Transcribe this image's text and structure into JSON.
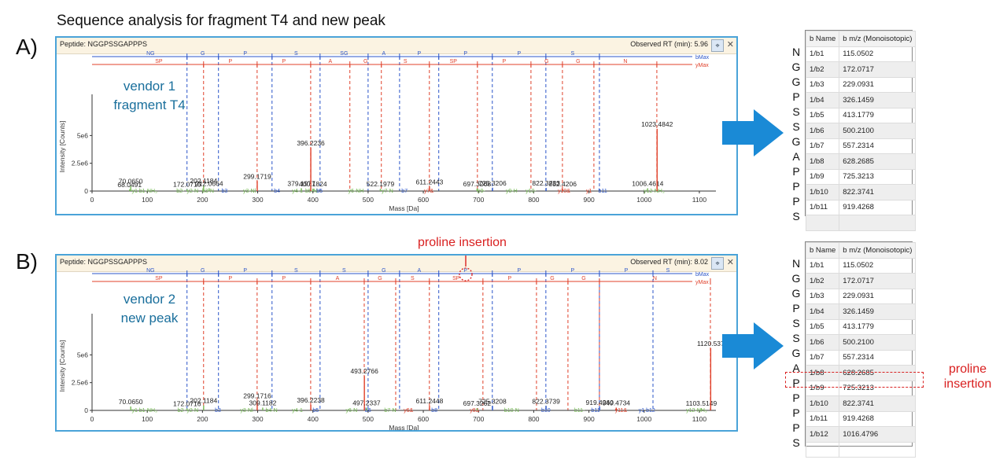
{
  "figure_title": "Sequence analysis for fragment T4 and new peak",
  "arrow_color": "#1a8ad6",
  "icons": {
    "pin": "pin-icon",
    "close": "close-icon",
    "arrow": "right-arrow-icon"
  },
  "panels": [
    {
      "letter": "A)",
      "peptide_label": "Peptide: NGGPSSGAPPPS",
      "rt_label": "Observed RT (min): 5.96",
      "vendor_line1": "vendor 1",
      "vendor_line2": "fragment T4",
      "x_axis_label": "Mass [Da]",
      "y_axis_label": "Intensity [Counts]",
      "b_max_label": "bMax",
      "y_max_label": "yMax",
      "b_seq": [
        "NG",
        "G",
        "P",
        "S",
        "SG",
        "A",
        "P",
        "P",
        "P",
        "S"
      ],
      "y_seq": [
        "SP",
        "P",
        "P",
        "A",
        "G",
        "S",
        "SP",
        "P",
        "G",
        "G",
        "N"
      ],
      "table_headers": [
        "b Name",
        "b m/z (Monoisotopic)"
      ],
      "rows": [
        {
          "aa": "N",
          "name": "1/b1",
          "mz": "115.0502"
        },
        {
          "aa": "G",
          "name": "1/b2",
          "mz": "172.0717"
        },
        {
          "aa": "G",
          "name": "1/b3",
          "mz": "229.0931"
        },
        {
          "aa": "P",
          "name": "1/b4",
          "mz": "326.1459"
        },
        {
          "aa": "S",
          "name": "1/b5",
          "mz": "413.1779"
        },
        {
          "aa": "S",
          "name": "1/b6",
          "mz": "500.2100"
        },
        {
          "aa": "G",
          "name": "1/b7",
          "mz": "557.2314"
        },
        {
          "aa": "A",
          "name": "1/b8",
          "mz": "628.2685"
        },
        {
          "aa": "P",
          "name": "1/b9",
          "mz": "725.3213"
        },
        {
          "aa": "P",
          "name": "1/b10",
          "mz": "822.3741"
        },
        {
          "aa": "P",
          "name": "1/b11",
          "mz": "919.4268"
        },
        {
          "aa": "S",
          "name": "",
          "mz": ""
        }
      ]
    },
    {
      "letter": "B)",
      "peptide_label": "Peptide: NGGPSSGAPPPS",
      "rt_label": "Observed RT (min): 8.02",
      "vendor_line1": "vendor 2",
      "vendor_line2": "new peak",
      "x_axis_label": "Mass [Da]",
      "y_axis_label": "Intensity [Counts]",
      "b_max_label": "bMax",
      "y_max_label": "yMax",
      "insertion_label": "proline insertion",
      "insertion_note_line1": "proline",
      "insertion_note_line2": "insertion",
      "b_seq": [
        "NG",
        "G",
        "P",
        "S",
        "S",
        "G",
        "A",
        "P",
        "P",
        "P",
        "P",
        "S"
      ],
      "y_seq": [
        "SP",
        "P",
        "P",
        "A",
        "G",
        "S",
        "SP",
        "P",
        "G",
        "G",
        "N"
      ],
      "table_headers": [
        "b Name",
        "b m/z (Monoisotopic)"
      ],
      "rows": [
        {
          "aa": "N",
          "name": "1/b1",
          "mz": "115.0502"
        },
        {
          "aa": "G",
          "name": "1/b2",
          "mz": "172.0717"
        },
        {
          "aa": "G",
          "name": "1/b3",
          "mz": "229.0931"
        },
        {
          "aa": "P",
          "name": "1/b4",
          "mz": "326.1459"
        },
        {
          "aa": "S",
          "name": "1/b5",
          "mz": "413.1779"
        },
        {
          "aa": "S",
          "name": "1/b6",
          "mz": "500.2100"
        },
        {
          "aa": "G",
          "name": "1/b7",
          "mz": "557.2314"
        },
        {
          "aa": "A",
          "name": "1/b8",
          "mz": "628.2685"
        },
        {
          "aa": "P",
          "name": "1/b9",
          "mz": "725.3213"
        },
        {
          "aa": "P",
          "name": "1/b10",
          "mz": "822.3741"
        },
        {
          "aa": "P",
          "name": "1/b11",
          "mz": "919.4268"
        },
        {
          "aa": "P",
          "name": "1/b12",
          "mz": "1016.4796"
        },
        {
          "aa": "S",
          "name": "",
          "mz": ""
        }
      ]
    }
  ],
  "chart_data": [
    {
      "type": "bar",
      "xlabel": "Mass [Da]",
      "ylabel": "Intensity [Counts]",
      "xlim": [
        0,
        1130
      ],
      "ylim": [
        0,
        8000000
      ],
      "xticks": [
        0,
        100,
        200,
        300,
        400,
        500,
        600,
        700,
        800,
        900,
        1000,
        1100
      ],
      "yticks": [
        {
          "v": 0,
          "l": "0"
        },
        {
          "v": 2500000,
          "l": "2.5e6"
        },
        {
          "v": 5000000,
          "l": "5e6"
        }
      ],
      "colors": {
        "b": "#2b55c9",
        "y": "#e0402a",
        "other": "#76bb55",
        "unmatched": "#444444"
      },
      "peaks": [
        {
          "x": 68.0491,
          "y": 150000,
          "label": "68.0491",
          "c": "other"
        },
        {
          "x": 70.065,
          "y": 450000,
          "label": "70.0650",
          "c": "other"
        },
        {
          "x": 172.0716,
          "y": 180000,
          "label": "172.0716",
          "c": "other"
        },
        {
          "x": 202.1184,
          "y": 500000,
          "label": "202.1184",
          "c": "other"
        },
        {
          "x": 212.0664,
          "y": 250000,
          "label": "212.0664",
          "c": "other"
        },
        {
          "x": 299.1719,
          "y": 900000,
          "label": "299.1719",
          "c": "y"
        },
        {
          "x": 379.1977,
          "y": 250000,
          "label": "379.1977",
          "c": "other"
        },
        {
          "x": 396.2236,
          "y": 3900000,
          "label": "396.2236",
          "c": "y"
        },
        {
          "x": 400.1824,
          "y": 220000,
          "label": "400.1824",
          "c": "other"
        },
        {
          "x": 522.1979,
          "y": 200000,
          "label": "522.1979",
          "c": "other"
        },
        {
          "x": 611.2443,
          "y": 400000,
          "label": "611.2443",
          "c": "y"
        },
        {
          "x": 697.3268,
          "y": 220000,
          "label": "697.3268",
          "c": "other"
        },
        {
          "x": 725.3206,
          "y": 300000,
          "label": "725.3206",
          "c": "b"
        },
        {
          "x": 822.3733,
          "y": 280000,
          "label": "822.3733",
          "c": "b"
        },
        {
          "x": 852.4206,
          "y": 200000,
          "label": "852.4206",
          "c": "y"
        },
        {
          "x": 1006.4614,
          "y": 250000,
          "label": "1006.4614",
          "c": "other"
        },
        {
          "x": 1023.4842,
          "y": 5600000,
          "label": "1023.4842",
          "c": "y"
        }
      ],
      "ion_labels": [
        {
          "x": 95,
          "text": "y1 b1-NH₃",
          "c": "other"
        },
        {
          "x": 160,
          "text": "b2-",
          "c": "other"
        },
        {
          "x": 182,
          "text": "y2-N",
          "c": "other"
        },
        {
          "x": 210,
          "text": "b3-N",
          "c": "other"
        },
        {
          "x": 240,
          "text": "b3",
          "c": "b"
        },
        {
          "x": 285,
          "text": "y3-Nl",
          "c": "other"
        },
        {
          "x": 335,
          "text": "b4",
          "c": "b"
        },
        {
          "x": 372,
          "text": "y4-1",
          "c": "other"
        },
        {
          "x": 397,
          "text": "b5-N",
          "c": "other"
        },
        {
          "x": 412,
          "text": "b5",
          "c": "b"
        },
        {
          "x": 478,
          "text": "y6-NH",
          "c": "other"
        },
        {
          "x": 535,
          "text": "y7-N",
          "c": "other"
        },
        {
          "x": 566,
          "text": "b7",
          "c": "b"
        },
        {
          "x": 610,
          "text": "y7&",
          "c": "y"
        },
        {
          "x": 705,
          "text": "b9-",
          "c": "other"
        },
        {
          "x": 760,
          "text": "y9-H",
          "c": "other"
        },
        {
          "x": 795,
          "text": "y10-",
          "c": "other"
        },
        {
          "x": 855,
          "text": "y10&",
          "c": "y"
        },
        {
          "x": 900,
          "text": "y1",
          "c": "y"
        },
        {
          "x": 925,
          "text": "b11",
          "c": "b"
        },
        {
          "x": 1018,
          "text": "y12-NH₃",
          "c": "other"
        }
      ]
    },
    {
      "type": "bar",
      "xlabel": "Mass [Da]",
      "ylabel": "Intensity [Counts]",
      "xlim": [
        0,
        1130
      ],
      "ylim": [
        0,
        8000000
      ],
      "xticks": [
        0,
        100,
        200,
        300,
        400,
        500,
        600,
        700,
        800,
        900,
        1000,
        1100
      ],
      "yticks": [
        {
          "v": 0,
          "l": "0"
        },
        {
          "v": 2500000,
          "l": "2.5e6"
        },
        {
          "v": 5000000,
          "l": "5e6"
        }
      ],
      "colors": {
        "b": "#2b55c9",
        "y": "#e0402a",
        "other": "#76bb55",
        "unmatched": "#444444"
      },
      "peaks": [
        {
          "x": 70.065,
          "y": 350000,
          "label": "70.0650",
          "c": "other"
        },
        {
          "x": 172.0716,
          "y": 180000,
          "label": "172.0716",
          "c": "other"
        },
        {
          "x": 202.1184,
          "y": 450000,
          "label": "202.1184",
          "c": "other"
        },
        {
          "x": 299.1716,
          "y": 900000,
          "label": "299.1716",
          "c": "y"
        },
        {
          "x": 309.1182,
          "y": 250000,
          "label": "309.1182",
          "c": "other"
        },
        {
          "x": 396.2238,
          "y": 500000,
          "label": "396.2238",
          "c": "y"
        },
        {
          "x": 493.2766,
          "y": 3100000,
          "label": "493.2766",
          "c": "y"
        },
        {
          "x": 497.2337,
          "y": 250000,
          "label": "497.2337",
          "c": "other"
        },
        {
          "x": 611.2448,
          "y": 420000,
          "label": "611.2448",
          "c": "y"
        },
        {
          "x": 697.3262,
          "y": 200000,
          "label": "697.3262",
          "c": "other"
        },
        {
          "x": 725.3208,
          "y": 400000,
          "label": "725.3208",
          "c": "b"
        },
        {
          "x": 822.3739,
          "y": 400000,
          "label": "822.3739",
          "c": "b"
        },
        {
          "x": 919.426,
          "y": 300000,
          "label": "919.4260",
          "c": "b"
        },
        {
          "x": 949.4734,
          "y": 250000,
          "label": "949.4734",
          "c": "y"
        },
        {
          "x": 1103.5149,
          "y": 200000,
          "label": "1103.5149",
          "c": "other"
        },
        {
          "x": 1120.537,
          "y": 5600000,
          "label": "1120.537",
          "c": "y"
        }
      ],
      "ion_labels": [
        {
          "x": 95,
          "text": "y1 b1-NH₃",
          "c": "other"
        },
        {
          "x": 162,
          "text": "b2-",
          "c": "other"
        },
        {
          "x": 182,
          "text": "y2-N",
          "c": "other"
        },
        {
          "x": 228,
          "text": "b3",
          "c": "b"
        },
        {
          "x": 280,
          "text": "y3-Nl",
          "c": "other"
        },
        {
          "x": 325,
          "text": "b4-N",
          "c": "other"
        },
        {
          "x": 372,
          "text": "y4-1",
          "c": "other"
        },
        {
          "x": 405,
          "text": "b5",
          "c": "b"
        },
        {
          "x": 470,
          "text": "y6-N",
          "c": "other"
        },
        {
          "x": 500,
          "text": "b6",
          "c": "b"
        },
        {
          "x": 540,
          "text": "b7-N",
          "c": "other"
        },
        {
          "x": 573,
          "text": "y6&",
          "c": "y"
        },
        {
          "x": 620,
          "text": "b8",
          "c": "b"
        },
        {
          "x": 693,
          "text": "y8&",
          "c": "y"
        },
        {
          "x": 760,
          "text": "b10-N",
          "c": "other"
        },
        {
          "x": 822,
          "text": "b10",
          "c": "b"
        },
        {
          "x": 883,
          "text": "b11-",
          "c": "other"
        },
        {
          "x": 912,
          "text": "b11",
          "c": "b"
        },
        {
          "x": 958,
          "text": "y11&",
          "c": "y"
        },
        {
          "x": 1005,
          "text": "y1 b12",
          "c": "b"
        },
        {
          "x": 1095,
          "text": "y12-NH₃",
          "c": "other"
        }
      ]
    }
  ]
}
